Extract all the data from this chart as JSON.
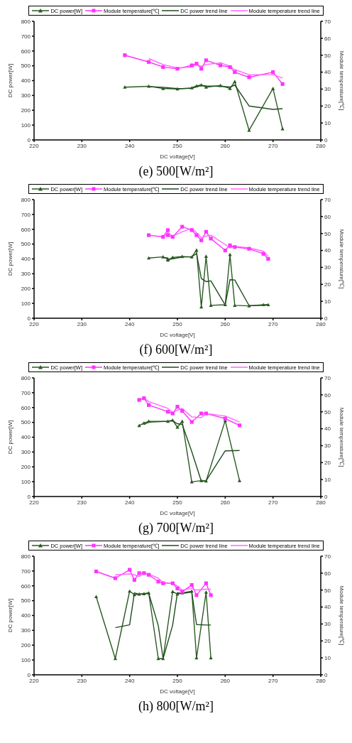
{
  "chart_data": [
    {
      "type": "line",
      "xlabel": "DC voltage[V]",
      "ylabel": "DC power[W]",
      "y2label": "Module temperature[℃]",
      "annotations": [
        "(e)  500[W/m²]"
      ],
      "xlim": [
        220,
        280
      ],
      "xticks": [
        220,
        230,
        240,
        250,
        260,
        270,
        280
      ],
      "ylim": [
        0,
        800
      ],
      "yticks": [
        0,
        100,
        200,
        300,
        400,
        500,
        600,
        700,
        800
      ],
      "y2lim": [
        0,
        70
      ],
      "y2ticks": [
        0,
        10,
        20,
        30,
        40,
        50,
        60,
        70
      ],
      "grid": false,
      "legend": "top",
      "line_style": "solid",
      "series": [
        {
          "name": "DC power[W]",
          "color": "#2a5a22",
          "marker": "triangle",
          "x": [
            239,
            244,
            247,
            250,
            253,
            254,
            255,
            256,
            259,
            261,
            262,
            265,
            270,
            272
          ],
          "values": [
            356,
            362,
            347,
            344,
            351,
            364,
            371,
            356,
            367,
            347,
            393,
            65,
            347,
            75
          ]
        },
        {
          "name": "Module temperature[℃]",
          "color": "#ff33ff",
          "marker": "square",
          "axis": "y2",
          "x": [
            239,
            244,
            247,
            250,
            253,
            254,
            255,
            256,
            259,
            261,
            262,
            265,
            270,
            272
          ],
          "values": [
            50,
            46,
            43,
            42,
            44,
            45,
            42,
            47,
            44,
            43,
            40,
            37,
            40,
            33
          ]
        },
        {
          "name": "DC power trend line",
          "color": "#1e4d1e",
          "marker": "none",
          "x": [
            244,
            247,
            250,
            253,
            254,
            255,
            256,
            259,
            261,
            262,
            265,
            270,
            272
          ],
          "values": [
            359,
            355,
            346,
            348,
            358,
            368,
            364,
            362,
            357,
            370,
            229,
            206,
            211
          ]
        },
        {
          "name": "Module temperature trend line",
          "color": "#ff66ff",
          "marker": "none",
          "axis": "y2",
          "x": [
            244,
            247,
            250,
            253,
            254,
            255,
            256,
            259,
            261,
            262,
            265,
            270,
            272
          ],
          "values": [
            48,
            44.5,
            42.5,
            43,
            44.5,
            43.5,
            44.5,
            45.5,
            43.5,
            41.5,
            38.5,
            38.5,
            36.5
          ]
        }
      ]
    },
    {
      "type": "line",
      "xlabel": "DC voltage[V]",
      "ylabel": "DC power[W]",
      "y2label": "Module temperature[℃]",
      "annotations": [
        "(f)  600[W/m²]"
      ],
      "xlim": [
        220,
        280
      ],
      "xticks": [
        220,
        230,
        240,
        250,
        260,
        270,
        280
      ],
      "ylim": [
        0,
        800
      ],
      "yticks": [
        0,
        100,
        200,
        300,
        400,
        500,
        600,
        700,
        800
      ],
      "y2lim": [
        0,
        70
      ],
      "y2ticks": [
        0,
        10,
        20,
        30,
        40,
        50,
        60,
        70
      ],
      "grid": false,
      "legend": "top",
      "line_style": "solid",
      "series": [
        {
          "name": "DC power[W]",
          "color": "#2a5a22",
          "marker": "triangle",
          "x": [
            244,
            247,
            248,
            248,
            249,
            251,
            253,
            254,
            255,
            256,
            257,
            260,
            261,
            262,
            265,
            268,
            269
          ],
          "values": [
            406,
            414,
            398,
            392,
            410,
            416,
            413,
            459,
            76,
            417,
            87,
            91,
            429,
            87,
            83,
            91,
            91
          ]
        },
        {
          "name": "Module temperature[℃]",
          "color": "#ff33ff",
          "marker": "square",
          "axis": "y2",
          "x": [
            244,
            247,
            248,
            248,
            249,
            251,
            253,
            254,
            255,
            256,
            257,
            260,
            261,
            262,
            265,
            268,
            269
          ],
          "values": [
            49,
            48,
            52,
            49,
            48,
            54,
            52,
            49,
            46,
            51,
            47,
            40,
            43,
            42,
            41,
            38,
            35
          ]
        },
        {
          "name": "DC power trend line",
          "color": "#1e4d1e",
          "marker": "none",
          "x": [
            247,
            248,
            248,
            249,
            251,
            253,
            254,
            255,
            256,
            257,
            260,
            261,
            262,
            265,
            268,
            269
          ],
          "values": [
            410,
            406,
            395,
            401,
            413,
            415,
            436,
            268,
            247,
            252,
            89,
            260,
            258,
            85,
            87,
            91
          ]
        },
        {
          "name": "Module temperature trend line",
          "color": "#ff66ff",
          "marker": "none",
          "axis": "y2",
          "x": [
            247,
            248,
            248,
            249,
            251,
            253,
            254,
            255,
            256,
            257,
            260,
            261,
            262,
            265,
            268,
            269
          ],
          "values": [
            48.5,
            50,
            50.5,
            48.5,
            51,
            53,
            50.5,
            47.5,
            48.5,
            49,
            43.5,
            41.5,
            42.5,
            41.5,
            39.5,
            36.5
          ]
        }
      ]
    },
    {
      "type": "line",
      "xlabel": "DC voltage[V]",
      "ylabel": "DC power[W]",
      "y2label": "Module temperature[℃]",
      "annotations": [
        "(g)  700[W/m²]"
      ],
      "xlim": [
        220,
        280
      ],
      "xticks": [
        220,
        230,
        240,
        250,
        260,
        270,
        280
      ],
      "ylim": [
        0,
        800
      ],
      "yticks": [
        0,
        100,
        200,
        300,
        400,
        500,
        600,
        700,
        800
      ],
      "y2lim": [
        0,
        70
      ],
      "y2ticks": [
        0,
        10,
        20,
        30,
        40,
        50,
        60,
        70
      ],
      "grid": false,
      "legend": "top",
      "line_style": "solid",
      "series": [
        {
          "name": "DC power[W]",
          "color": "#2a5a22",
          "marker": "triangle",
          "x": [
            242,
            243,
            244,
            248,
            249,
            250,
            251,
            253,
            255,
            256,
            260,
            263
          ],
          "values": [
            478,
            495,
            507,
            507,
            515,
            467,
            507,
            99,
            107,
            104,
            512,
            107
          ]
        },
        {
          "name": "Module temperature[℃]",
          "color": "#ff33ff",
          "marker": "square",
          "axis": "y2",
          "x": [
            242,
            243,
            244,
            248,
            249,
            250,
            251,
            253,
            255,
            256,
            260,
            263
          ],
          "values": [
            57,
            58,
            54,
            50,
            49,
            53,
            50.5,
            44,
            49,
            49,
            46,
            42
          ]
        },
        {
          "name": "DC power trend line",
          "color": "#1e4d1e",
          "marker": "none",
          "x": [
            243,
            244,
            248,
            249,
            250,
            251,
            253,
            255,
            256,
            260,
            263
          ],
          "values": [
            487,
            501,
            507,
            511,
            491,
            487,
            303,
            103,
            106,
            308,
            310
          ]
        },
        {
          "name": "Module temperature trend line",
          "color": "#ff66ff",
          "marker": "none",
          "axis": "y2",
          "x": [
            243,
            244,
            248,
            249,
            250,
            251,
            253,
            255,
            256,
            260,
            263
          ],
          "values": [
            58,
            56,
            52,
            49.5,
            51,
            52,
            47,
            46.5,
            49,
            47.5,
            44
          ]
        }
      ]
    },
    {
      "type": "line",
      "xlabel": "DC voltage[V]",
      "ylabel": "DC power[W]",
      "y2label": "Module temperature[℃]",
      "annotations": [
        "(h)  800[W/m²]"
      ],
      "xlim": [
        220,
        280
      ],
      "xticks": [
        220,
        230,
        240,
        250,
        260,
        270,
        280
      ],
      "ylim": [
        0,
        800
      ],
      "yticks": [
        0,
        100,
        200,
        300,
        400,
        500,
        600,
        700,
        800
      ],
      "y2lim": [
        0,
        70
      ],
      "y2ticks": [
        0,
        10,
        20,
        30,
        40,
        50,
        60,
        70
      ],
      "grid": false,
      "legend": "top",
      "line_style": "solid",
      "series": [
        {
          "name": "DC power[W]",
          "color": "#2a5a22",
          "marker": "triangle",
          "x": [
            233,
            237,
            240,
            241,
            242,
            243,
            244,
            246,
            247,
            249,
            250,
            251,
            253,
            254,
            256,
            257
          ],
          "values": [
            527,
            109,
            564,
            541,
            544,
            547,
            552,
            109,
            109,
            561,
            544,
            552,
            564,
            114,
            557,
            114
          ]
        },
        {
          "name": "Module temperature[℃]",
          "color": "#ff33ff",
          "marker": "square",
          "axis": "y2",
          "x": [
            233,
            237,
            240,
            241,
            242,
            243,
            244,
            246,
            247,
            249,
            250,
            251,
            253,
            254,
            256,
            257
          ],
          "values": [
            61,
            57,
            62,
            56,
            60,
            60,
            59,
            55,
            54,
            54,
            51,
            49,
            53,
            47,
            54,
            47
          ]
        },
        {
          "name": "DC power trend line",
          "color": "#1e4d1e",
          "marker": "none",
          "x": [
            237,
            240,
            241,
            242,
            243,
            244,
            246,
            247,
            249,
            250,
            251,
            253,
            254,
            256,
            257
          ],
          "values": [
            318,
            337,
            553,
            543,
            546,
            550,
            331,
            109,
            335,
            553,
            548,
            558,
            339,
            336,
            336
          ]
        },
        {
          "name": "Module temperature trend line",
          "color": "#ff66ff",
          "marker": "none",
          "axis": "y2",
          "x": [
            237,
            240,
            241,
            242,
            243,
            244,
            246,
            247,
            249,
            250,
            251,
            253,
            254,
            256,
            257
          ],
          "values": [
            59,
            59.5,
            59,
            58,
            60,
            59.5,
            57,
            54.5,
            54,
            52.5,
            50,
            51,
            50,
            50.5,
            50.5
          ]
        }
      ]
    }
  ]
}
